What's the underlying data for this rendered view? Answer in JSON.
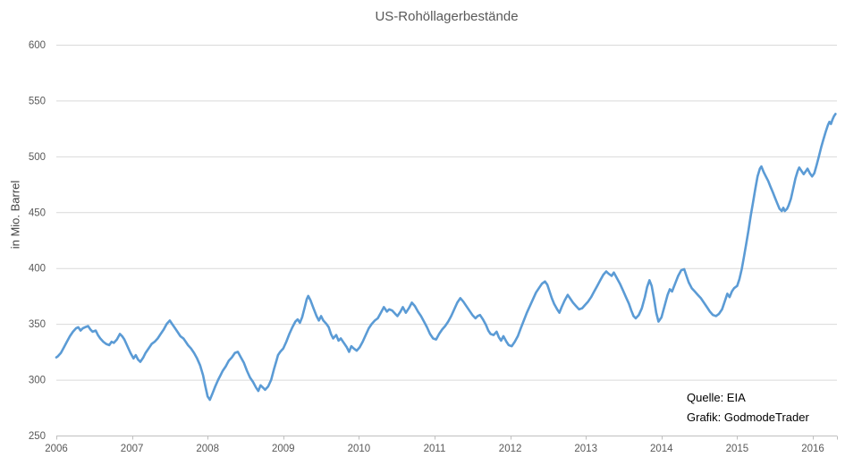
{
  "chart_data": {
    "type": "line",
    "title": "US-Rohöllagerbestände",
    "ylabel": "in Mio. Barrel",
    "xlabel": "",
    "x_ticks": [
      2006,
      2007,
      2008,
      2009,
      2010,
      2011,
      2012,
      2013,
      2014,
      2015,
      2016
    ],
    "y_ticks": [
      250,
      300,
      350,
      400,
      450,
      500,
      550,
      600
    ],
    "xlim": [
      2006,
      2016.35
    ],
    "ylim": [
      250,
      600
    ],
    "grid": "horizontal",
    "legend": "none",
    "annotations": [
      {
        "text": "Quelle: EIA"
      },
      {
        "text": "Grafik: GodmodeTrader"
      }
    ],
    "colors": {
      "line": "#5B9BD5",
      "gridline": "#D9D9D9",
      "axis": "#BFBFBF",
      "tick_label": "#595959",
      "title": "#595959",
      "ylabel": "#404040",
      "annotation": "#000000"
    },
    "series": [
      {
        "name": "US-Rohöllagerbestände in Mio. Barrel",
        "color": "#5B9BD5",
        "points": [
          [
            2006.0,
            320
          ],
          [
            2006.02,
            321
          ],
          [
            2006.06,
            324
          ],
          [
            2006.1,
            329
          ],
          [
            2006.14,
            334
          ],
          [
            2006.18,
            339
          ],
          [
            2006.22,
            343
          ],
          [
            2006.26,
            346
          ],
          [
            2006.29,
            347
          ],
          [
            2006.32,
            344
          ],
          [
            2006.35,
            346
          ],
          [
            2006.38,
            347
          ],
          [
            2006.42,
            348
          ],
          [
            2006.45,
            345
          ],
          [
            2006.48,
            343
          ],
          [
            2006.52,
            344
          ],
          [
            2006.55,
            340
          ],
          [
            2006.58,
            337
          ],
          [
            2006.62,
            334
          ],
          [
            2006.66,
            332
          ],
          [
            2006.7,
            331
          ],
          [
            2006.73,
            334
          ],
          [
            2006.76,
            333
          ],
          [
            2006.8,
            336
          ],
          [
            2006.84,
            341
          ],
          [
            2006.87,
            339
          ],
          [
            2006.9,
            336
          ],
          [
            2006.94,
            330
          ],
          [
            2006.98,
            324
          ],
          [
            2007.02,
            319
          ],
          [
            2007.05,
            322
          ],
          [
            2007.08,
            318
          ],
          [
            2007.11,
            316
          ],
          [
            2007.15,
            320
          ],
          [
            2007.18,
            324
          ],
          [
            2007.22,
            328
          ],
          [
            2007.26,
            332
          ],
          [
            2007.3,
            334
          ],
          [
            2007.34,
            337
          ],
          [
            2007.38,
            341
          ],
          [
            2007.42,
            345
          ],
          [
            2007.46,
            350
          ],
          [
            2007.5,
            353
          ],
          [
            2007.53,
            350
          ],
          [
            2007.56,
            347
          ],
          [
            2007.6,
            343
          ],
          [
            2007.64,
            339
          ],
          [
            2007.68,
            337
          ],
          [
            2007.71,
            334
          ],
          [
            2007.74,
            331
          ],
          [
            2007.78,
            328
          ],
          [
            2007.82,
            324
          ],
          [
            2007.86,
            319
          ],
          [
            2007.9,
            313
          ],
          [
            2007.94,
            304
          ],
          [
            2007.97,
            294
          ],
          [
            2008.0,
            285
          ],
          [
            2008.03,
            282
          ],
          [
            2008.06,
            287
          ],
          [
            2008.1,
            294
          ],
          [
            2008.14,
            300
          ],
          [
            2008.17,
            304
          ],
          [
            2008.2,
            308
          ],
          [
            2008.24,
            312
          ],
          [
            2008.28,
            317
          ],
          [
            2008.32,
            320
          ],
          [
            2008.36,
            324
          ],
          [
            2008.4,
            325
          ],
          [
            2008.44,
            320
          ],
          [
            2008.48,
            315
          ],
          [
            2008.52,
            308
          ],
          [
            2008.56,
            302
          ],
          [
            2008.6,
            298
          ],
          [
            2008.64,
            293
          ],
          [
            2008.67,
            290
          ],
          [
            2008.7,
            295
          ],
          [
            2008.73,
            293
          ],
          [
            2008.76,
            291
          ],
          [
            2008.8,
            294
          ],
          [
            2008.84,
            300
          ],
          [
            2008.88,
            310
          ],
          [
            2008.91,
            317
          ],
          [
            2008.93,
            322
          ],
          [
            2008.96,
            325
          ],
          [
            2009.0,
            328
          ],
          [
            2009.04,
            334
          ],
          [
            2009.08,
            341
          ],
          [
            2009.12,
            347
          ],
          [
            2009.16,
            352
          ],
          [
            2009.19,
            354
          ],
          [
            2009.22,
            351
          ],
          [
            2009.25,
            356
          ],
          [
            2009.28,
            364
          ],
          [
            2009.31,
            372
          ],
          [
            2009.33,
            375
          ],
          [
            2009.36,
            371
          ],
          [
            2009.4,
            364
          ],
          [
            2009.44,
            357
          ],
          [
            2009.47,
            353
          ],
          [
            2009.5,
            357
          ],
          [
            2009.53,
            353
          ],
          [
            2009.57,
            350
          ],
          [
            2009.6,
            347
          ],
          [
            2009.63,
            341
          ],
          [
            2009.66,
            337
          ],
          [
            2009.7,
            340
          ],
          [
            2009.73,
            335
          ],
          [
            2009.76,
            337
          ],
          [
            2009.8,
            333
          ],
          [
            2009.84,
            329
          ],
          [
            2009.87,
            325
          ],
          [
            2009.9,
            330
          ],
          [
            2009.93,
            328
          ],
          [
            2009.97,
            326
          ],
          [
            2010.01,
            329
          ],
          [
            2010.05,
            334
          ],
          [
            2010.09,
            340
          ],
          [
            2010.13,
            346
          ],
          [
            2010.17,
            350
          ],
          [
            2010.21,
            353
          ],
          [
            2010.25,
            355
          ],
          [
            2010.29,
            360
          ],
          [
            2010.33,
            365
          ],
          [
            2010.37,
            361
          ],
          [
            2010.4,
            363
          ],
          [
            2010.44,
            362
          ],
          [
            2010.48,
            359
          ],
          [
            2010.51,
            357
          ],
          [
            2010.55,
            361
          ],
          [
            2010.58,
            365
          ],
          [
            2010.62,
            360
          ],
          [
            2010.66,
            364
          ],
          [
            2010.7,
            369
          ],
          [
            2010.74,
            366
          ],
          [
            2010.78,
            361
          ],
          [
            2010.82,
            357
          ],
          [
            2010.86,
            352
          ],
          [
            2010.9,
            347
          ],
          [
            2010.94,
            341
          ],
          [
            2010.98,
            337
          ],
          [
            2011.02,
            336
          ],
          [
            2011.06,
            341
          ],
          [
            2011.1,
            345
          ],
          [
            2011.14,
            348
          ],
          [
            2011.18,
            352
          ],
          [
            2011.22,
            357
          ],
          [
            2011.26,
            363
          ],
          [
            2011.3,
            369
          ],
          [
            2011.34,
            373
          ],
          [
            2011.38,
            370
          ],
          [
            2011.42,
            366
          ],
          [
            2011.46,
            362
          ],
          [
            2011.5,
            358
          ],
          [
            2011.54,
            355
          ],
          [
            2011.57,
            357
          ],
          [
            2011.6,
            358
          ],
          [
            2011.64,
            354
          ],
          [
            2011.68,
            349
          ],
          [
            2011.71,
            344
          ],
          [
            2011.74,
            341
          ],
          [
            2011.78,
            340
          ],
          [
            2011.82,
            343
          ],
          [
            2011.85,
            338
          ],
          [
            2011.88,
            335
          ],
          [
            2011.91,
            339
          ],
          [
            2011.95,
            334
          ],
          [
            2011.98,
            331
          ],
          [
            2012.02,
            330
          ],
          [
            2012.06,
            334
          ],
          [
            2012.1,
            339
          ],
          [
            2012.14,
            346
          ],
          [
            2012.18,
            353
          ],
          [
            2012.22,
            360
          ],
          [
            2012.26,
            366
          ],
          [
            2012.3,
            372
          ],
          [
            2012.34,
            378
          ],
          [
            2012.38,
            382
          ],
          [
            2012.42,
            386
          ],
          [
            2012.46,
            388
          ],
          [
            2012.49,
            385
          ],
          [
            2012.52,
            379
          ],
          [
            2012.55,
            373
          ],
          [
            2012.58,
            368
          ],
          [
            2012.62,
            363
          ],
          [
            2012.65,
            360
          ],
          [
            2012.68,
            365
          ],
          [
            2012.72,
            371
          ],
          [
            2012.76,
            376
          ],
          [
            2012.79,
            373
          ],
          [
            2012.83,
            369
          ],
          [
            2012.87,
            366
          ],
          [
            2012.91,
            363
          ],
          [
            2012.95,
            364
          ],
          [
            2012.99,
            367
          ],
          [
            2013.03,
            370
          ],
          [
            2013.07,
            374
          ],
          [
            2013.11,
            379
          ],
          [
            2013.15,
            384
          ],
          [
            2013.19,
            389
          ],
          [
            2013.23,
            394
          ],
          [
            2013.27,
            397
          ],
          [
            2013.3,
            395
          ],
          [
            2013.34,
            393
          ],
          [
            2013.37,
            396
          ],
          [
            2013.41,
            391
          ],
          [
            2013.45,
            386
          ],
          [
            2013.49,
            380
          ],
          [
            2013.53,
            374
          ],
          [
            2013.57,
            368
          ],
          [
            2013.6,
            362
          ],
          [
            2013.63,
            357
          ],
          [
            2013.66,
            355
          ],
          [
            2013.7,
            358
          ],
          [
            2013.74,
            364
          ],
          [
            2013.78,
            374
          ],
          [
            2013.81,
            383
          ],
          [
            2013.84,
            389
          ],
          [
            2013.87,
            384
          ],
          [
            2013.9,
            373
          ],
          [
            2013.93,
            360
          ],
          [
            2013.96,
            352
          ],
          [
            2014.0,
            356
          ],
          [
            2014.04,
            366
          ],
          [
            2014.08,
            376
          ],
          [
            2014.11,
            381
          ],
          [
            2014.14,
            379
          ],
          [
            2014.18,
            386
          ],
          [
            2014.22,
            393
          ],
          [
            2014.26,
            398
          ],
          [
            2014.3,
            399
          ],
          [
            2014.33,
            393
          ],
          [
            2014.36,
            387
          ],
          [
            2014.4,
            382
          ],
          [
            2014.44,
            379
          ],
          [
            2014.48,
            376
          ],
          [
            2014.52,
            373
          ],
          [
            2014.56,
            369
          ],
          [
            2014.6,
            365
          ],
          [
            2014.64,
            361
          ],
          [
            2014.68,
            358
          ],
          [
            2014.72,
            357
          ],
          [
            2014.76,
            359
          ],
          [
            2014.8,
            363
          ],
          [
            2014.84,
            371
          ],
          [
            2014.87,
            377
          ],
          [
            2014.9,
            374
          ],
          [
            2014.93,
            379
          ],
          [
            2014.96,
            382
          ],
          [
            2015.0,
            384
          ],
          [
            2015.03,
            390
          ],
          [
            2015.06,
            399
          ],
          [
            2015.09,
            410
          ],
          [
            2015.12,
            422
          ],
          [
            2015.15,
            434
          ],
          [
            2015.18,
            447
          ],
          [
            2015.21,
            459
          ],
          [
            2015.24,
            471
          ],
          [
            2015.27,
            482
          ],
          [
            2015.3,
            489
          ],
          [
            2015.32,
            491
          ],
          [
            2015.35,
            486
          ],
          [
            2015.38,
            482
          ],
          [
            2015.41,
            478
          ],
          [
            2015.44,
            473
          ],
          [
            2015.47,
            468
          ],
          [
            2015.5,
            463
          ],
          [
            2015.53,
            458
          ],
          [
            2015.56,
            453
          ],
          [
            2015.59,
            451
          ],
          [
            2015.61,
            454
          ],
          [
            2015.63,
            451
          ],
          [
            2015.66,
            453
          ],
          [
            2015.68,
            456
          ],
          [
            2015.71,
            462
          ],
          [
            2015.74,
            471
          ],
          [
            2015.77,
            480
          ],
          [
            2015.8,
            487
          ],
          [
            2015.82,
            490
          ],
          [
            2015.85,
            487
          ],
          [
            2015.88,
            484
          ],
          [
            2015.91,
            487
          ],
          [
            2015.93,
            489
          ],
          [
            2015.96,
            485
          ],
          [
            2015.99,
            482
          ],
          [
            2016.02,
            485
          ],
          [
            2016.05,
            492
          ],
          [
            2016.08,
            500
          ],
          [
            2016.11,
            508
          ],
          [
            2016.14,
            515
          ],
          [
            2016.17,
            522
          ],
          [
            2016.2,
            528
          ],
          [
            2016.22,
            531
          ],
          [
            2016.24,
            529
          ],
          [
            2016.26,
            533
          ],
          [
            2016.28,
            536
          ],
          [
            2016.3,
            538
          ]
        ]
      }
    ]
  }
}
